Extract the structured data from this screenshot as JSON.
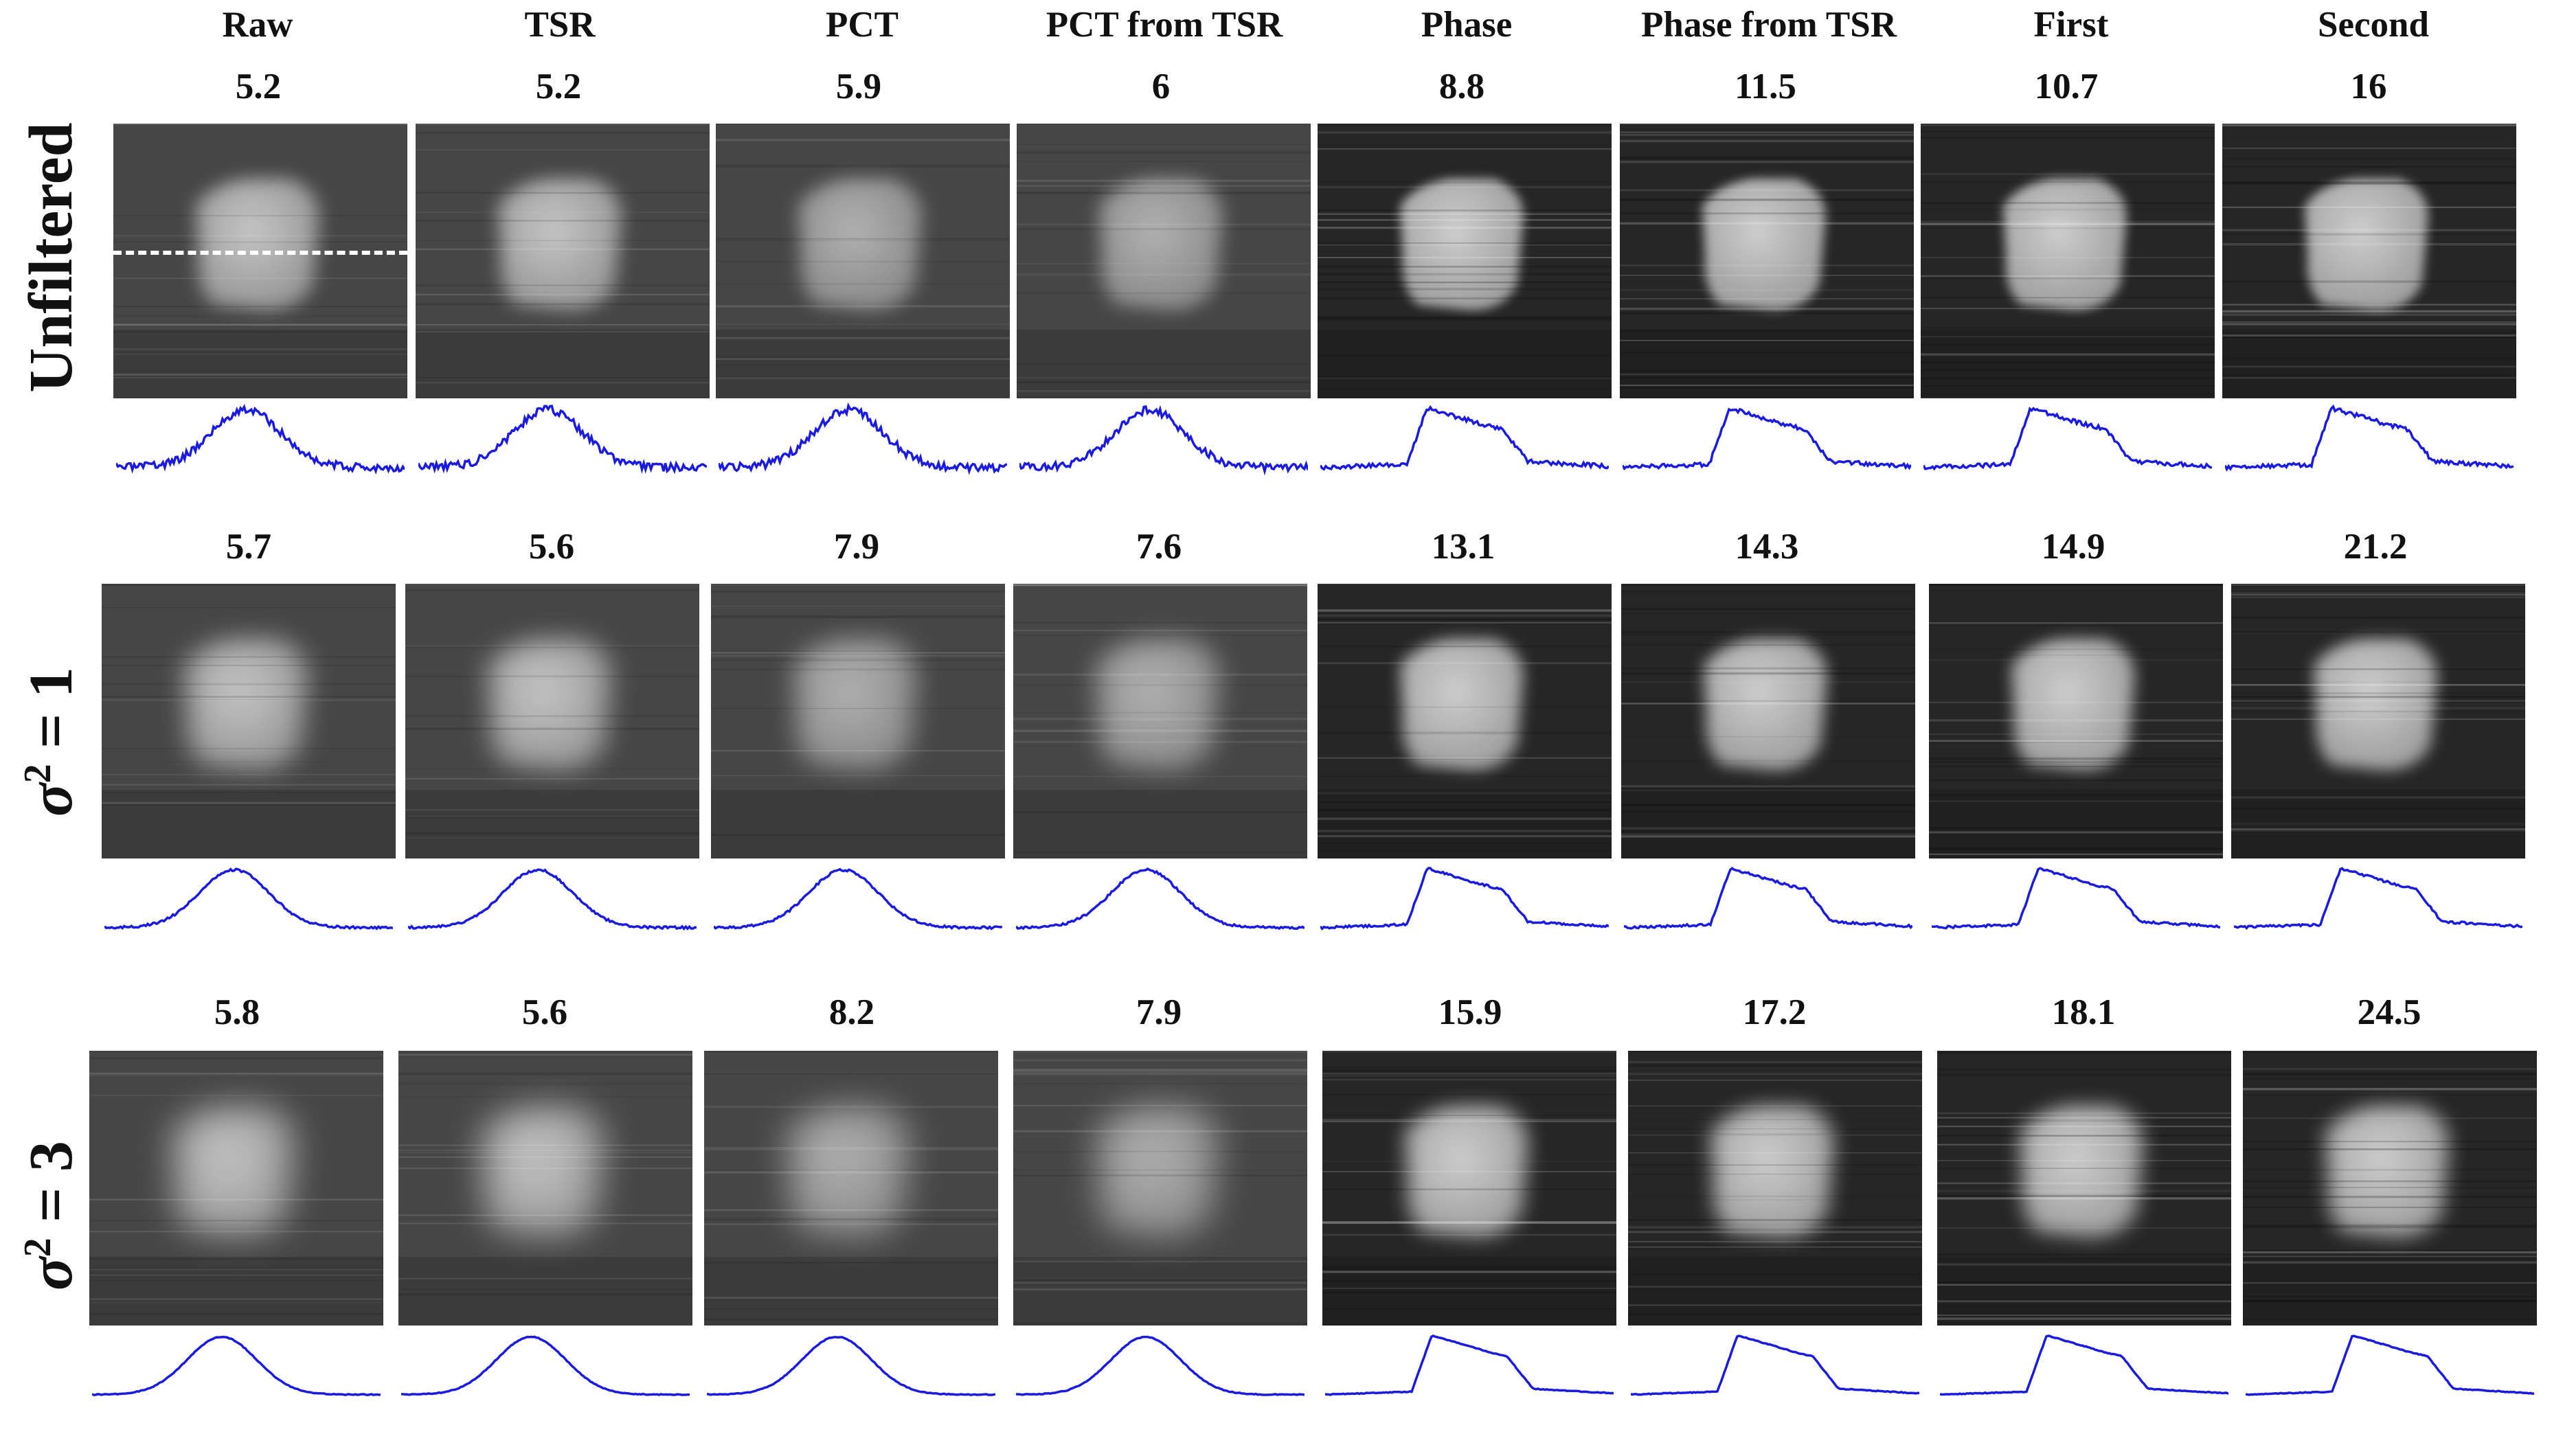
{
  "columns": [
    "Raw",
    "TSR",
    "PCT",
    "PCT from TSR",
    "Phase",
    "Phase from TSR",
    "First",
    "Second"
  ],
  "rows": [
    {
      "label": "Unfiltered",
      "values": [
        "5.2",
        "5.2",
        "5.9",
        "6",
        "8.8",
        "11.5",
        "10.7",
        "16"
      ]
    },
    {
      "sigma_symbol": "σ",
      "exponent": "2",
      "eq": " = 1",
      "values": [
        "5.7",
        "5.6",
        "7.9",
        "7.6",
        "13.1",
        "14.3",
        "14.9",
        "21.2"
      ]
    },
    {
      "sigma_symbol": "σ",
      "exponent": "2",
      "eq": " = 3",
      "values": [
        "5.8",
        "5.6",
        "8.2",
        "7.9",
        "15.9",
        "17.2",
        "18.1",
        "24.5"
      ]
    }
  ],
  "colors": {
    "profile_line": "#1b1bde",
    "dash_line": "#ffffff",
    "background": "#ffffff"
  }
}
